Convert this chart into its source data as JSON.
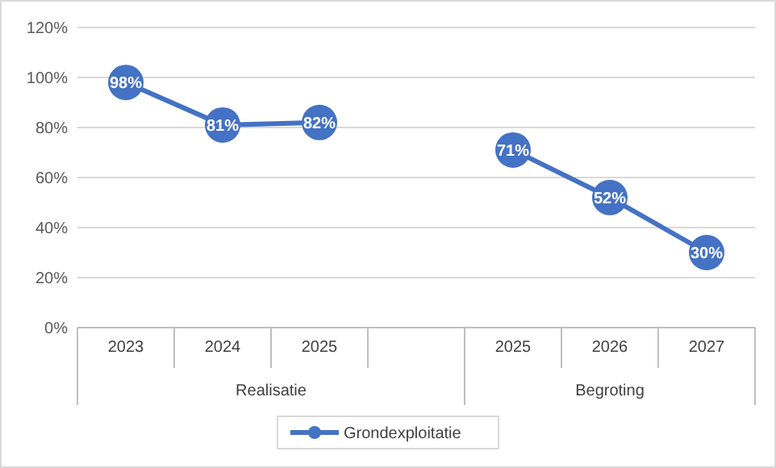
{
  "chart_data": {
    "type": "line",
    "categories": [
      "2023",
      "2024",
      "2025",
      null,
      "2025",
      "2026",
      "2027"
    ],
    "series": [
      {
        "name": "Grondexploitatie",
        "color": "#4472c4",
        "values": [
          98,
          81,
          82,
          null,
          71,
          52,
          30
        ]
      }
    ],
    "value_labels": [
      "98%",
      "81%",
      "82%",
      null,
      "71%",
      "52%",
      "30%"
    ],
    "ylim": [
      0,
      120
    ],
    "yticks": [
      {
        "value": 0,
        "label": "0%"
      },
      {
        "value": 20,
        "label": "20%"
      },
      {
        "value": 40,
        "label": "40%"
      },
      {
        "value": 60,
        "label": "60%"
      },
      {
        "value": 80,
        "label": "80%"
      },
      {
        "value": 100,
        "label": "100%"
      },
      {
        "value": 120,
        "label": "120%"
      }
    ],
    "annotations": [
      "Realisatie",
      "Begroting"
    ],
    "grid": "y",
    "legend": "bottom",
    "marker": "circle",
    "line_style": "solid"
  }
}
